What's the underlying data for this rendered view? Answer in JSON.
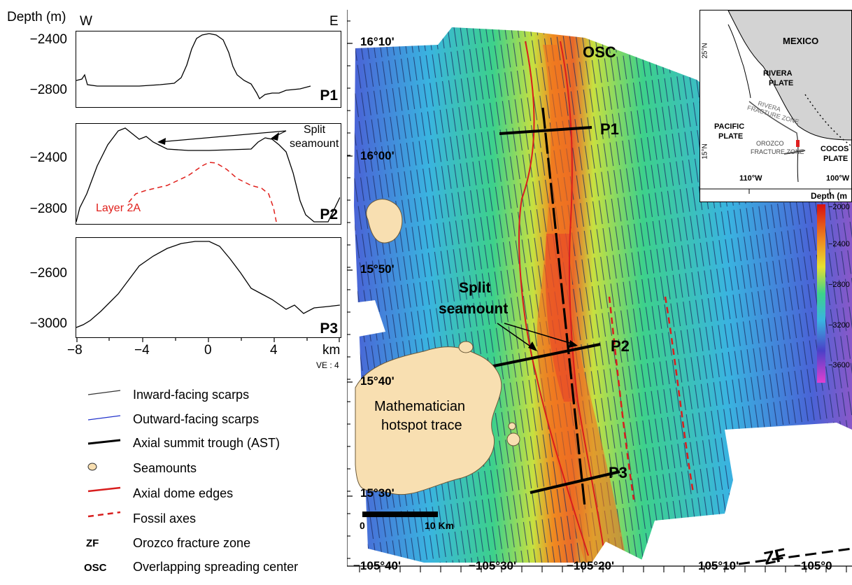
{
  "profiles": {
    "axis_title": "Depth (m)",
    "west": "W",
    "east": "E",
    "p1": {
      "label": "P1",
      "ticks": [
        "−2400",
        "−2800"
      ]
    },
    "p2": {
      "label": "P2",
      "ticks": [
        "−2400",
        "−2800"
      ],
      "split_label_1": "Split",
      "split_label_2": "seamount",
      "layer_label": "Layer 2A"
    },
    "p3": {
      "label": "P3",
      "ticks": [
        "−2600",
        "−3000"
      ]
    },
    "x_ticks": [
      "−8",
      "−4",
      "0",
      "4"
    ],
    "x_unit": "km",
    "ve": "VE : 4",
    "colors": {
      "layer": "#e0201c"
    }
  },
  "legend": {
    "items": [
      {
        "label": "Inward-facing scarps",
        "symbol": "thin-black-line"
      },
      {
        "label": "Outward-facing scarps",
        "symbol": "thin-blue-line"
      },
      {
        "label": "Axial summit trough (AST)",
        "symbol": "thick-black-line"
      },
      {
        "label": "Seamounts",
        "symbol": "seamount-ellipse"
      },
      {
        "label": "Axial dome edges",
        "symbol": "red-line"
      },
      {
        "label": "Fossil axes",
        "symbol": "red-dashed-line"
      },
      {
        "label": "Orozco fracture zone",
        "symbol": "ZF"
      },
      {
        "label": "Overlapping spreading center",
        "symbol": "OSC"
      }
    ]
  },
  "map": {
    "lat_labels": [
      "16°10'",
      "16°00'",
      "15°50'",
      "15°40'",
      "15°30'"
    ],
    "lon_labels": [
      "−105°40'",
      "−105°30'",
      "−105°20'",
      "105°10'",
      "−105°0"
    ],
    "osc": "OSC",
    "p1": "P1",
    "p2": "P2",
    "p3": "P3",
    "split_1": "Split",
    "split_2": "seamount",
    "hotspot_1": "Mathematician",
    "hotspot_2": "hotspot trace",
    "scale_0": "0",
    "scale_10": "10 Km",
    "zf": "ZF",
    "colors": {
      "seamount": "#f8dfb1",
      "dome": "#d81e1e"
    }
  },
  "inset": {
    "mexico": "MEXICO",
    "rivera_1": "RIVERA",
    "rivera_2": "PLATE",
    "rfz_1": "RIVERA",
    "rfz_2": "FRACTURE ZONE",
    "pacific_1": "PACIFIC",
    "pacific_2": "PLATE",
    "orozco_1": "OROZCO",
    "orozco_2": "FRACTURE ZONE",
    "cocos_1": "COCOS",
    "cocos_2": "PLATE",
    "lat_25": "25°N",
    "lat_15": "15°N",
    "lon_110": "110°W",
    "lon_100": "100°W"
  },
  "colorbar": {
    "title": "Depth (m",
    "ticks": [
      "−2000",
      "−2400",
      "−2800",
      "−3200",
      "−3600"
    ]
  }
}
